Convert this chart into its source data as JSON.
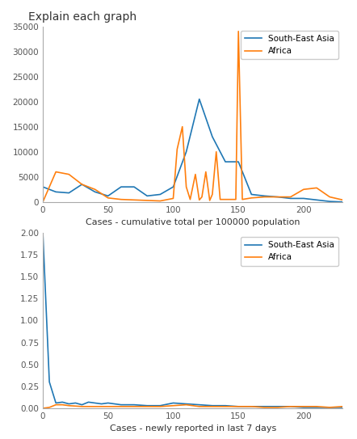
{
  "title": "Explain each graph",
  "plot1": {
    "xlabel": "Cases - cumulative total per 100000 population",
    "sea_x": [
      0,
      10,
      20,
      30,
      40,
      50,
      60,
      70,
      80,
      90,
      100,
      110,
      120,
      130,
      140,
      150,
      160,
      170,
      180,
      190,
      200,
      210,
      220,
      230
    ],
    "sea_y": [
      3000,
      2000,
      1800,
      3500,
      2000,
      1200,
      3000,
      3000,
      1200,
      1500,
      3000,
      10000,
      20500,
      13000,
      8000,
      8000,
      1500,
      1200,
      1000,
      700,
      700,
      400,
      100,
      0
    ],
    "africa_x": [
      0,
      10,
      20,
      30,
      40,
      50,
      60,
      70,
      80,
      90,
      100,
      103,
      107,
      110,
      113,
      117,
      120,
      122,
      125,
      128,
      130,
      133,
      136,
      140,
      145,
      148,
      150,
      153,
      160,
      170,
      180,
      190,
      200,
      210,
      220,
      230
    ],
    "africa_y": [
      0,
      6000,
      5500,
      3500,
      2500,
      800,
      500,
      400,
      300,
      200,
      700,
      10500,
      15000,
      3000,
      500,
      5500,
      400,
      1000,
      6000,
      300,
      1500,
      10000,
      500,
      500,
      500,
      500,
      34000,
      500,
      800,
      1000,
      1000,
      1000,
      2500,
      2800,
      1000,
      400
    ],
    "sea_color": "#1f77b4",
    "africa_color": "#ff7f0e",
    "sea_label": "South-East Asia",
    "africa_label": "Africa",
    "ylim": [
      0,
      35000
    ],
    "xlim": [
      0,
      230
    ],
    "yticks": [
      0,
      5000,
      10000,
      15000,
      20000,
      25000,
      30000,
      35000
    ],
    "xticks": [
      0,
      50,
      100,
      150,
      200
    ]
  },
  "plot2": {
    "xlabel": "Cases - newly reported in last 7 days",
    "sea_x": [
      0,
      5,
      10,
      15,
      20,
      25,
      30,
      35,
      40,
      45,
      50,
      60,
      70,
      80,
      90,
      100,
      110,
      120,
      130,
      140,
      150,
      160,
      170,
      180,
      190,
      200,
      210,
      220,
      230
    ],
    "sea_y": [
      2.0,
      0.3,
      0.06,
      0.07,
      0.05,
      0.06,
      0.04,
      0.07,
      0.06,
      0.05,
      0.06,
      0.04,
      0.04,
      0.03,
      0.03,
      0.06,
      0.05,
      0.04,
      0.03,
      0.03,
      0.02,
      0.02,
      0.02,
      0.02,
      0.02,
      0.01,
      0.01,
      0.01,
      0.01
    ],
    "africa_x": [
      0,
      5,
      10,
      15,
      20,
      30,
      40,
      50,
      60,
      70,
      80,
      90,
      100,
      110,
      120,
      130,
      140,
      150,
      160,
      170,
      180,
      190,
      200,
      210,
      220,
      230
    ],
    "africa_y": [
      0.0,
      0.01,
      0.04,
      0.04,
      0.03,
      0.02,
      0.02,
      0.02,
      0.02,
      0.02,
      0.02,
      0.02,
      0.03,
      0.04,
      0.02,
      0.02,
      0.02,
      0.02,
      0.02,
      0.01,
      0.01,
      0.02,
      0.02,
      0.02,
      0.01,
      0.02
    ],
    "sea_color": "#1f77b4",
    "africa_color": "#ff7f0e",
    "sea_label": "South-East Asia",
    "africa_label": "Africa",
    "ylim": [
      0.0,
      2.0
    ],
    "xlim": [
      0,
      230
    ],
    "yticks": [
      0.0,
      0.25,
      0.5,
      0.75,
      1.0,
      1.25,
      1.5,
      1.75,
      2.0
    ],
    "xticks": [
      0,
      50,
      100,
      150,
      200
    ]
  }
}
